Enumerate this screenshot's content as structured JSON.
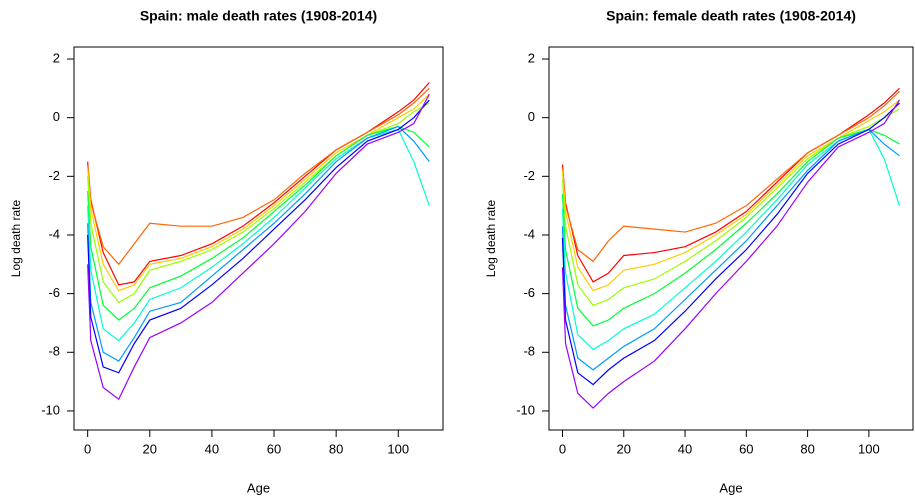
{
  "chart_data": [
    {
      "type": "line",
      "title": "Spain: male death rates  (1908-2014)",
      "x_label": "Age",
      "y_label": "Log death rate",
      "x": [
        0,
        1,
        5,
        10,
        15,
        20,
        30,
        40,
        50,
        60,
        70,
        80,
        90,
        100,
        105,
        110
      ],
      "xlim": [
        -4.4,
        114.4
      ],
      "ylim": [
        -10.65,
        2.41
      ],
      "xticks": [
        0,
        20,
        40,
        60,
        80,
        100
      ],
      "yticks": [
        -10,
        -8,
        -6,
        -4,
        -2,
        0,
        2
      ],
      "series": [
        {
          "color": "#FF0000",
          "values": [
            -1.5,
            -2.8,
            -4.6,
            -5.7,
            -5.6,
            -4.9,
            -4.7,
            -4.3,
            -3.7,
            -2.9,
            -2.0,
            -1.1,
            -0.5,
            0.2,
            0.6,
            1.2
          ]
        },
        {
          "color": "#FF6600",
          "values": [
            -1.6,
            -2.9,
            -4.4,
            -5.0,
            -4.3,
            -3.6,
            -3.7,
            -3.7,
            -3.4,
            -2.8,
            -1.9,
            -1.1,
            -0.5,
            0.1,
            0.5,
            1.0
          ]
        },
        {
          "color": "#FFCC00",
          "values": [
            -1.7,
            -3.1,
            -5.0,
            -5.9,
            -5.7,
            -5.0,
            -4.8,
            -4.4,
            -3.8,
            -3.0,
            -2.1,
            -1.2,
            -0.6,
            0.0,
            0.3,
            0.8
          ]
        },
        {
          "color": "#99FF00",
          "values": [
            -2.0,
            -3.6,
            -5.6,
            -6.3,
            -6.0,
            -5.2,
            -4.9,
            -4.5,
            -3.9,
            -3.1,
            -2.2,
            -1.3,
            -0.6,
            -0.2,
            0.2,
            0.5
          ]
        },
        {
          "color": "#00FF33",
          "values": [
            -2.5,
            -4.4,
            -6.4,
            -6.9,
            -6.5,
            -5.8,
            -5.4,
            -4.8,
            -4.1,
            -3.2,
            -2.3,
            -1.3,
            -0.6,
            -0.3,
            -0.5,
            -1.0
          ]
        },
        {
          "color": "#00FFCC",
          "values": [
            -3.0,
            -5.2,
            -7.2,
            -7.6,
            -7.0,
            -6.2,
            -5.8,
            -5.1,
            -4.3,
            -3.4,
            -2.4,
            -1.4,
            -0.7,
            -0.4,
            -1.5,
            -3.0
          ]
        },
        {
          "color": "#0099FF",
          "values": [
            -3.6,
            -6.3,
            -8.0,
            -8.3,
            -7.5,
            -6.6,
            -6.3,
            -5.4,
            -4.5,
            -3.6,
            -2.6,
            -1.5,
            -0.7,
            -0.3,
            -0.8,
            -1.5
          ]
        },
        {
          "color": "#0000FF",
          "values": [
            -4.0,
            -6.8,
            -8.5,
            -8.7,
            -7.7,
            -6.9,
            -6.5,
            -5.7,
            -4.8,
            -3.8,
            -2.8,
            -1.7,
            -0.8,
            -0.4,
            0.0,
            0.6
          ]
        },
        {
          "color": "#9900FF",
          "values": [
            -5.0,
            -7.6,
            -9.2,
            -9.6,
            -8.5,
            -7.5,
            -7.0,
            -6.3,
            -5.3,
            -4.3,
            -3.2,
            -1.9,
            -0.9,
            -0.5,
            -0.2,
            0.8
          ]
        }
      ]
    },
    {
      "type": "line",
      "title": "Spain: female death rates  (1908-2014)",
      "x_label": "Age",
      "y_label": "Log death rate",
      "x": [
        0,
        1,
        5,
        10,
        15,
        20,
        30,
        40,
        50,
        60,
        70,
        80,
        90,
        100,
        105,
        110
      ],
      "xlim": [
        -4.4,
        114.4
      ],
      "ylim": [
        -10.65,
        2.41
      ],
      "xticks": [
        0,
        20,
        40,
        60,
        80,
        100
      ],
      "yticks": [
        -10,
        -8,
        -6,
        -4,
        -2,
        0,
        2
      ],
      "series": [
        {
          "color": "#FF0000",
          "values": [
            -1.6,
            -2.9,
            -4.7,
            -5.6,
            -5.3,
            -4.7,
            -4.6,
            -4.4,
            -3.9,
            -3.2,
            -2.2,
            -1.2,
            -0.6,
            0.1,
            0.5,
            1.0
          ]
        },
        {
          "color": "#FF6600",
          "values": [
            -1.7,
            -3.0,
            -4.5,
            -4.9,
            -4.2,
            -3.7,
            -3.8,
            -3.9,
            -3.6,
            -3.0,
            -2.1,
            -1.2,
            -0.6,
            0.0,
            0.4,
            0.9
          ]
        },
        {
          "color": "#FFCC00",
          "values": [
            -1.8,
            -3.2,
            -5.1,
            -5.9,
            -5.7,
            -5.2,
            -5.0,
            -4.6,
            -4.0,
            -3.3,
            -2.3,
            -1.3,
            -0.7,
            -0.1,
            0.2,
            0.6
          ]
        },
        {
          "color": "#99FF00",
          "values": [
            -2.1,
            -3.7,
            -5.7,
            -6.4,
            -6.2,
            -5.8,
            -5.5,
            -4.9,
            -4.2,
            -3.4,
            -2.4,
            -1.4,
            -0.7,
            -0.3,
            0.0,
            0.3
          ]
        },
        {
          "color": "#00FF33",
          "values": [
            -2.6,
            -4.5,
            -6.5,
            -7.1,
            -6.9,
            -6.5,
            -6.0,
            -5.3,
            -4.5,
            -3.6,
            -2.6,
            -1.5,
            -0.7,
            -0.4,
            -0.6,
            -0.9
          ]
        },
        {
          "color": "#00FFCC",
          "values": [
            -3.1,
            -5.3,
            -7.4,
            -7.9,
            -7.6,
            -7.2,
            -6.7,
            -5.8,
            -4.9,
            -3.9,
            -2.8,
            -1.6,
            -0.8,
            -0.4,
            -1.4,
            -3.0
          ]
        },
        {
          "color": "#0099FF",
          "values": [
            -3.7,
            -6.4,
            -8.2,
            -8.6,
            -8.2,
            -7.8,
            -7.2,
            -6.2,
            -5.2,
            -4.2,
            -3.0,
            -1.8,
            -0.8,
            -0.4,
            -0.9,
            -1.3
          ]
        },
        {
          "color": "#0000FF",
          "values": [
            -4.1,
            -6.9,
            -8.7,
            -9.1,
            -8.6,
            -8.2,
            -7.6,
            -6.6,
            -5.5,
            -4.5,
            -3.3,
            -1.9,
            -0.9,
            -0.4,
            0.0,
            0.5
          ]
        },
        {
          "color": "#9900FF",
          "values": [
            -5.1,
            -7.7,
            -9.4,
            -9.9,
            -9.4,
            -9.0,
            -8.3,
            -7.2,
            -6.0,
            -4.9,
            -3.7,
            -2.2,
            -1.0,
            -0.5,
            -0.2,
            0.6
          ]
        }
      ]
    }
  ]
}
